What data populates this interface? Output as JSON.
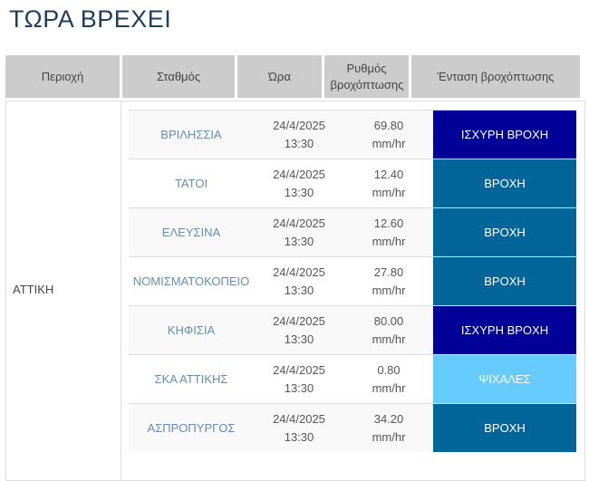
{
  "title": "ΤΩΡΑ ΒΡΕΧΕΙ",
  "headers": [
    "Περιοχή",
    "Σταθμός",
    "Ώρα",
    "Ρυθμός βροχόπτωσης",
    "Ένταση βροχόπτωσης"
  ],
  "region": "ΑΤΤΙΚΗ",
  "colors": {
    "heavy": "#000099",
    "rain": "#006699",
    "drizzle": "#66ccff"
  },
  "rows": [
    {
      "station": "ΒΡΙΛΗΣΣΙΑ",
      "date": "24/4/2025",
      "time": "13:30",
      "rate": "69.80",
      "unit": "mm/hr",
      "intensity": "ΙΣΧΥΡΗ ΒΡΟΧΗ",
      "color": "#000099"
    },
    {
      "station": "ΤΑΤΟΙ",
      "date": "24/4/2025",
      "time": "13:30",
      "rate": "12.40",
      "unit": "mm/hr",
      "intensity": "ΒΡΟΧΗ",
      "color": "#006699"
    },
    {
      "station": "ΕΛΕΥΣΙΝΑ",
      "date": "24/4/2025",
      "time": "13:30",
      "rate": "12.60",
      "unit": "mm/hr",
      "intensity": "ΒΡΟΧΗ",
      "color": "#006699"
    },
    {
      "station": "ΝΟΜΙΣΜΑΤΟΚΟΠΕΙΟ",
      "date": "24/4/2025",
      "time": "13:30",
      "rate": "27.80",
      "unit": "mm/hr",
      "intensity": "ΒΡΟΧΗ",
      "color": "#006699"
    },
    {
      "station": "ΚΗΦΙΣΙΑ",
      "date": "24/4/2025",
      "time": "13:30",
      "rate": "80.00",
      "unit": "mm/hr",
      "intensity": "ΙΣΧΥΡΗ ΒΡΟΧΗ",
      "color": "#000099"
    },
    {
      "station": "ΣΚΑ ΑΤΤΙΚΗΣ",
      "date": "24/4/2025",
      "time": "13:30",
      "rate": "0.80",
      "unit": "mm/hr",
      "intensity": "ΨΙΧΑΛΕΣ",
      "color": "#66ccff"
    },
    {
      "station": "ΑΣΠΡΟΠΥΡΓΟΣ",
      "date": "24/4/2025",
      "time": "13:30",
      "rate": "34.20",
      "unit": "mm/hr",
      "intensity": "ΒΡΟΧΗ",
      "color": "#006699"
    }
  ]
}
